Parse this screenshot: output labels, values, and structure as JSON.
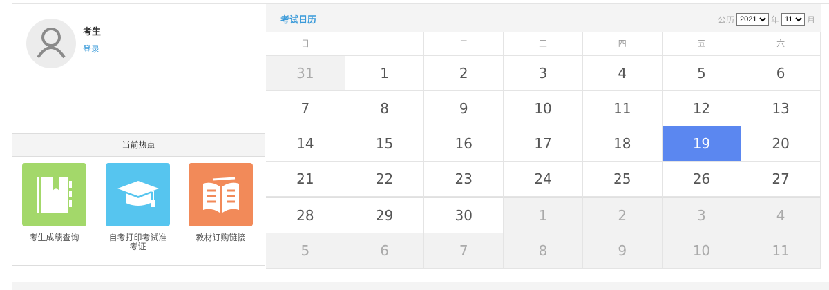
{
  "user": {
    "name": "考生",
    "login_label": "登录"
  },
  "hot": {
    "title": "当前热点",
    "items": [
      {
        "label": "考生成绩查询",
        "color": "#a3d86a",
        "icon": "notebook-icon"
      },
      {
        "label": "自考打印考试准考证",
        "color": "#56c5ef",
        "icon": "graduation-cap-icon"
      },
      {
        "label": "教材订购链接",
        "color": "#f28a59",
        "icon": "open-book-icon"
      }
    ]
  },
  "calendar": {
    "title": "考试日历",
    "era_label": "公历",
    "year": "2021",
    "year_unit": "年",
    "month": "11",
    "month_unit": "月",
    "weekdays": [
      "日",
      "一",
      "二",
      "三",
      "四",
      "五",
      "六"
    ],
    "selected": "19",
    "accent": "#5b87f0",
    "days": [
      [
        "31",
        "1",
        "2",
        "3",
        "4",
        "5",
        "6"
      ],
      [
        "7",
        "8",
        "9",
        "10",
        "11",
        "12",
        "13"
      ],
      [
        "14",
        "15",
        "16",
        "17",
        "18",
        "19",
        "20"
      ],
      [
        "21",
        "22",
        "23",
        "24",
        "25",
        "26",
        "27"
      ],
      [
        "28",
        "29",
        "30",
        "1",
        "2",
        "3",
        "4"
      ],
      [
        "5",
        "6",
        "7",
        "8",
        "9",
        "10",
        "11"
      ]
    ],
    "out_of_month": [
      [
        1,
        0,
        0,
        0,
        0,
        0,
        0
      ],
      [
        0,
        0,
        0,
        0,
        0,
        0,
        0
      ],
      [
        0,
        0,
        0,
        0,
        0,
        0,
        0
      ],
      [
        0,
        0,
        0,
        0,
        0,
        0,
        0
      ],
      [
        0,
        0,
        0,
        1,
        1,
        1,
        1
      ],
      [
        1,
        1,
        1,
        1,
        1,
        1,
        1
      ]
    ]
  }
}
